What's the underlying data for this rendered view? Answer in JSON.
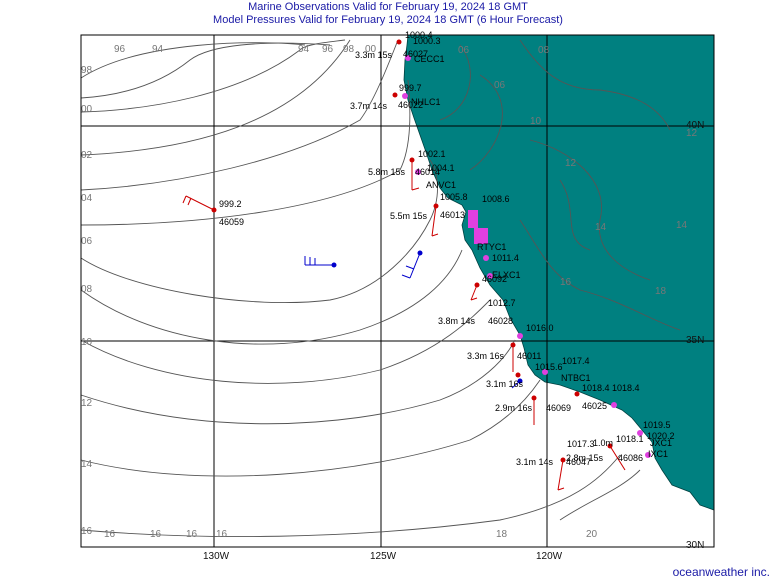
{
  "header": {
    "title": "Marine Observations Valid for February 19, 2024 18 GMT",
    "subtitle": "Model Pressures Valid for February 19, 2024 18 GMT (6 Hour Forecast)"
  },
  "footer": {
    "credit": "oceanweather inc."
  },
  "colors": {
    "land": "#008080",
    "ocean": "#ffffff",
    "isobar": "#555555",
    "text": "#1a1aa6",
    "obs_red": "#cc0000",
    "obs_blue": "#0000cc",
    "station_marker": "#e040e0"
  },
  "axes": {
    "longitude_labels": [
      "130W",
      "125W",
      "120W"
    ],
    "latitude_labels": [
      "40N",
      "35N",
      "30N"
    ]
  },
  "isobar_labels": [
    {
      "id": "i1",
      "text": "96"
    },
    {
      "id": "i2",
      "text": "94"
    },
    {
      "id": "i3",
      "text": "94"
    },
    {
      "id": "i4",
      "text": "96"
    },
    {
      "id": "i5",
      "text": "98"
    },
    {
      "id": "i6",
      "text": "00"
    },
    {
      "id": "i7",
      "text": "98"
    },
    {
      "id": "i8",
      "text": "00"
    },
    {
      "id": "i9",
      "text": "02"
    },
    {
      "id": "i10",
      "text": "04"
    },
    {
      "id": "i11",
      "text": "06"
    },
    {
      "id": "i12",
      "text": "08"
    },
    {
      "id": "i13",
      "text": "10"
    },
    {
      "id": "i14",
      "text": "12"
    },
    {
      "id": "i15",
      "text": "14"
    },
    {
      "id": "i16",
      "text": "16"
    },
    {
      "id": "i17",
      "text": "16"
    },
    {
      "id": "i18",
      "text": "16"
    },
    {
      "id": "i19",
      "text": "16"
    },
    {
      "id": "i20",
      "text": "16"
    },
    {
      "id": "i21",
      "text": "06"
    },
    {
      "id": "i22",
      "text": "08"
    },
    {
      "id": "i23",
      "text": "06"
    },
    {
      "id": "i24",
      "text": "10"
    },
    {
      "id": "i25",
      "text": "12"
    },
    {
      "id": "i26",
      "text": "14"
    },
    {
      "id": "i27",
      "text": "12"
    },
    {
      "id": "i28",
      "text": "14"
    },
    {
      "id": "i29",
      "text": "16"
    },
    {
      "id": "i30",
      "text": "18"
    },
    {
      "id": "i31",
      "text": "18"
    },
    {
      "id": "i32",
      "text": "20"
    }
  ],
  "observations": [
    {
      "id": "o1",
      "text": "1000.4"
    },
    {
      "id": "o2",
      "text": "1000.3"
    },
    {
      "id": "o3",
      "text": "3.3m 15s"
    },
    {
      "id": "o4",
      "text": "46027"
    },
    {
      "id": "o5",
      "text": "CECC1"
    },
    {
      "id": "o6",
      "text": "999.7"
    },
    {
      "id": "o7",
      "text": "3.7m 14s"
    },
    {
      "id": "o8",
      "text": "46022"
    },
    {
      "id": "o9",
      "text": "NHLC1"
    },
    {
      "id": "o10",
      "text": "1002.1"
    },
    {
      "id": "o11",
      "text": "1004.1"
    },
    {
      "id": "o12",
      "text": "5.8m 15s"
    },
    {
      "id": "o13",
      "text": "46014"
    },
    {
      "id": "o14",
      "text": "ANVC1"
    },
    {
      "id": "o15",
      "text": "1005.8"
    },
    {
      "id": "o16",
      "text": "999.2"
    },
    {
      "id": "o17",
      "text": "46059"
    },
    {
      "id": "o18",
      "text": "5.5m 15s"
    },
    {
      "id": "o19",
      "text": "46013"
    },
    {
      "id": "o20",
      "text": "1008.6"
    },
    {
      "id": "o21",
      "text": "RTYC1"
    },
    {
      "id": "o22",
      "text": "1011.4"
    },
    {
      "id": "o23",
      "text": "ELXC1"
    },
    {
      "id": "o24",
      "text": "46092"
    },
    {
      "id": "o25",
      "text": "1012.7"
    },
    {
      "id": "o26",
      "text": "3.8m 14s"
    },
    {
      "id": "o27",
      "text": "46028"
    },
    {
      "id": "o28",
      "text": "1016.0"
    },
    {
      "id": "o29",
      "text": "3.3m 16s"
    },
    {
      "id": "o30",
      "text": "46011"
    },
    {
      "id": "o31",
      "text": "1017.4"
    },
    {
      "id": "o32",
      "text": "1015.6"
    },
    {
      "id": "o33",
      "text": "NTBC1"
    },
    {
      "id": "o34",
      "text": "3.1m 16s"
    },
    {
      "id": "o35",
      "text": "1018.4"
    },
    {
      "id": "o36",
      "text": "1018.4"
    },
    {
      "id": "o37",
      "text": "2.9m 16s"
    },
    {
      "id": "o38",
      "text": "46025"
    },
    {
      "id": "o39",
      "text": "46069"
    },
    {
      "id": "o40",
      "text": "1019.5"
    },
    {
      "id": "o41",
      "text": "1017.3"
    },
    {
      "id": "o42",
      "text": "1.0m"
    },
    {
      "id": "o43",
      "text": "1018.1"
    },
    {
      "id": "o44",
      "text": "1020.2"
    },
    {
      "id": "o45",
      "text": "JXC1"
    },
    {
      "id": "o46",
      "text": "2.8m 15s"
    },
    {
      "id": "o47",
      "text": "46086"
    },
    {
      "id": "o48",
      "text": "3.1m 14s"
    },
    {
      "id": "o49",
      "text": "46047"
    },
    {
      "id": "o50",
      "text": "IXC1"
    }
  ]
}
